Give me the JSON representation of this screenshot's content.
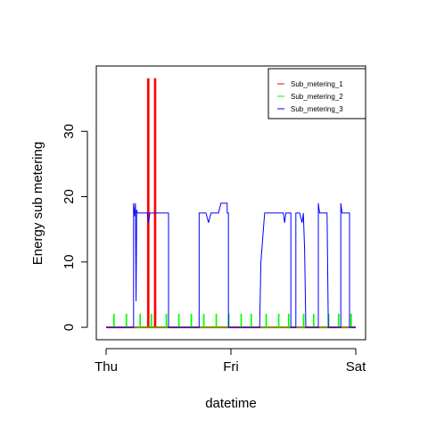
{
  "chart_data": {
    "type": "line",
    "xlabel": "datetime",
    "ylabel": "Energy sub metering",
    "x_range": [
      0,
      2
    ],
    "ylim": [
      -1.9,
      40
    ],
    "x_ticks": [
      {
        "x": 0,
        "label": "Thu"
      },
      {
        "x": 1,
        "label": "Fri"
      },
      {
        "x": 2,
        "label": "Sat"
      }
    ],
    "y_ticks": [
      {
        "value": 0,
        "label": "0"
      },
      {
        "value": 10,
        "label": "10"
      },
      {
        "value": 20,
        "label": "20"
      },
      {
        "value": 30,
        "label": "30"
      }
    ],
    "grid": false,
    "legend_position": "top-right",
    "legend": [
      "Sub_metering_1",
      "Sub_metering_2",
      "Sub_metering_3"
    ],
    "series": [
      {
        "name": "Sub_metering_1",
        "color": "#ff0000",
        "points": [
          [
            0,
            0
          ],
          [
            0.335,
            0
          ],
          [
            0.335,
            38
          ],
          [
            0.34,
            38
          ],
          [
            0.34,
            0
          ],
          [
            0.39,
            0
          ],
          [
            0.39,
            38
          ],
          [
            0.395,
            38
          ],
          [
            0.395,
            0
          ],
          [
            2,
            0
          ]
        ]
      },
      {
        "name": "Sub_metering_2",
        "color": "#00ff00",
        "points": [
          [
            0,
            0
          ],
          [
            0.06,
            0
          ],
          [
            0.06,
            2
          ],
          [
            0.065,
            2
          ],
          [
            0.065,
            0
          ],
          [
            0.16,
            0
          ],
          [
            0.16,
            2
          ],
          [
            0.165,
            2
          ],
          [
            0.165,
            0
          ],
          [
            0.27,
            0
          ],
          [
            0.27,
            2
          ],
          [
            0.275,
            2
          ],
          [
            0.275,
            0
          ],
          [
            0.36,
            0
          ],
          [
            0.36,
            2
          ],
          [
            0.365,
            2
          ],
          [
            0.365,
            0
          ],
          [
            0.48,
            0
          ],
          [
            0.48,
            2
          ],
          [
            0.485,
            2
          ],
          [
            0.485,
            0
          ],
          [
            0.58,
            0
          ],
          [
            0.58,
            2
          ],
          [
            0.585,
            2
          ],
          [
            0.585,
            0
          ],
          [
            0.68,
            0
          ],
          [
            0.68,
            2
          ],
          [
            0.685,
            2
          ],
          [
            0.685,
            0
          ],
          [
            0.78,
            0
          ],
          [
            0.78,
            2
          ],
          [
            0.785,
            2
          ],
          [
            0.785,
            0
          ],
          [
            0.88,
            0
          ],
          [
            0.88,
            2
          ],
          [
            0.885,
            2
          ],
          [
            0.885,
            0
          ],
          [
            0.98,
            0
          ],
          [
            0.98,
            2
          ],
          [
            0.985,
            2
          ],
          [
            0.985,
            0
          ],
          [
            1.08,
            0
          ],
          [
            1.08,
            2
          ],
          [
            1.085,
            2
          ],
          [
            1.085,
            0
          ],
          [
            1.16,
            0
          ],
          [
            1.16,
            2
          ],
          [
            1.165,
            2
          ],
          [
            1.165,
            0
          ],
          [
            1.28,
            0
          ],
          [
            1.28,
            2
          ],
          [
            1.285,
            2
          ],
          [
            1.285,
            0
          ],
          [
            1.38,
            0
          ],
          [
            1.38,
            2
          ],
          [
            1.385,
            2
          ],
          [
            1.385,
            0
          ],
          [
            1.46,
            0
          ],
          [
            1.46,
            2
          ],
          [
            1.465,
            2
          ],
          [
            1.465,
            0
          ],
          [
            1.58,
            0
          ],
          [
            1.58,
            2
          ],
          [
            1.585,
            2
          ],
          [
            1.585,
            0
          ],
          [
            1.66,
            0
          ],
          [
            1.66,
            2
          ],
          [
            1.665,
            2
          ],
          [
            1.665,
            0
          ],
          [
            1.78,
            0
          ],
          [
            1.78,
            2
          ],
          [
            1.785,
            2
          ],
          [
            1.785,
            0
          ],
          [
            1.86,
            0
          ],
          [
            1.86,
            2
          ],
          [
            1.865,
            2
          ],
          [
            1.865,
            0
          ],
          [
            1.96,
            0
          ],
          [
            1.96,
            2
          ],
          [
            1.965,
            2
          ],
          [
            1.965,
            0
          ],
          [
            2,
            0
          ]
        ]
      },
      {
        "name": "Sub_metering_3",
        "color": "#0000ff",
        "points": [
          [
            0,
            0
          ],
          [
            0.22,
            0
          ],
          [
            0.22,
            19
          ],
          [
            0.23,
            17
          ],
          [
            0.235,
            19
          ],
          [
            0.24,
            4
          ],
          [
            0.245,
            18
          ],
          [
            0.25,
            17.5
          ],
          [
            0.33,
            17.5
          ],
          [
            0.34,
            16
          ],
          [
            0.35,
            17.5
          ],
          [
            0.4,
            17.5
          ],
          [
            0.42,
            17.5
          ],
          [
            0.45,
            17.5
          ],
          [
            0.5,
            17.5
          ],
          [
            0.5,
            0
          ],
          [
            0.745,
            0
          ],
          [
            0.745,
            17.5
          ],
          [
            0.8,
            17.5
          ],
          [
            0.82,
            16
          ],
          [
            0.84,
            17.5
          ],
          [
            0.9,
            17.5
          ],
          [
            0.92,
            19
          ],
          [
            0.97,
            19
          ],
          [
            0.97,
            17.5
          ],
          [
            0.98,
            17.5
          ],
          [
            0.98,
            0
          ],
          [
            1.23,
            0
          ],
          [
            1.24,
            10
          ],
          [
            1.27,
            17.5
          ],
          [
            1.42,
            17.5
          ],
          [
            1.43,
            16
          ],
          [
            1.44,
            17.5
          ],
          [
            1.48,
            17.5
          ],
          [
            1.48,
            0
          ],
          [
            1.52,
            0
          ],
          [
            1.52,
            17.5
          ],
          [
            1.55,
            17.5
          ],
          [
            1.57,
            16
          ],
          [
            1.58,
            17.5
          ],
          [
            1.59,
            12
          ],
          [
            1.6,
            0
          ],
          [
            1.7,
            0
          ],
          [
            1.7,
            19
          ],
          [
            1.71,
            17.5
          ],
          [
            1.77,
            17.5
          ],
          [
            1.78,
            0
          ],
          [
            1.88,
            0
          ],
          [
            1.88,
            19
          ],
          [
            1.89,
            17.5
          ],
          [
            1.95,
            17.5
          ],
          [
            1.95,
            0
          ],
          [
            2,
            0
          ]
        ]
      }
    ]
  }
}
